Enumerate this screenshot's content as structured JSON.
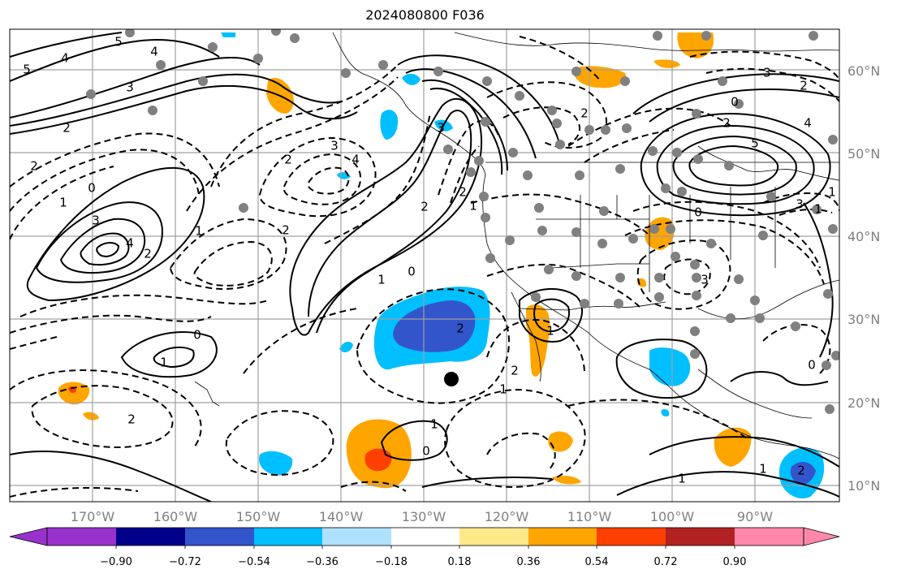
{
  "title": "2024080800 F036",
  "map": {
    "lat_labels": [
      "60°N",
      "50°N",
      "40°N",
      "30°N",
      "20°N",
      "10°N"
    ],
    "lon_labels": [
      "170°W",
      "160°W",
      "150°W",
      "140°W",
      "130°W",
      "120°W",
      "110°W",
      "100°W",
      "90°W"
    ],
    "contour_labels": [
      "5",
      "4",
      "5",
      "4",
      "3",
      "2",
      "1",
      "0",
      "2",
      "3",
      "4",
      "2",
      "1",
      "2",
      "0",
      "1",
      "2",
      "3",
      "2",
      "1",
      "0",
      "1",
      "2",
      "3",
      "4",
      "5",
      "4",
      "3",
      "2",
      "1",
      "0",
      "1",
      "2",
      "3",
      "2",
      "0",
      "1",
      "2",
      "2",
      "1",
      "1",
      "0",
      "2",
      "3",
      "2",
      "1",
      "0",
      "1"
    ]
  },
  "colorbar": {
    "ticks": [
      "−0.90",
      "−0.72",
      "−0.54",
      "−0.36",
      "−0.18",
      "0.18",
      "0.36",
      "0.54",
      "0.72",
      "0.90"
    ],
    "colors": [
      "#9932cc",
      "#00008b",
      "#3355cc",
      "#00bfff",
      "#aee0ff",
      "#ffffff",
      "#ffe88a",
      "#ffa500",
      "#ff4000",
      "#b22222",
      "#ff88aa"
    ]
  },
  "colors": {
    "grid": "#a0a0a0",
    "station_dot": "#808080",
    "marker": "#000000"
  }
}
